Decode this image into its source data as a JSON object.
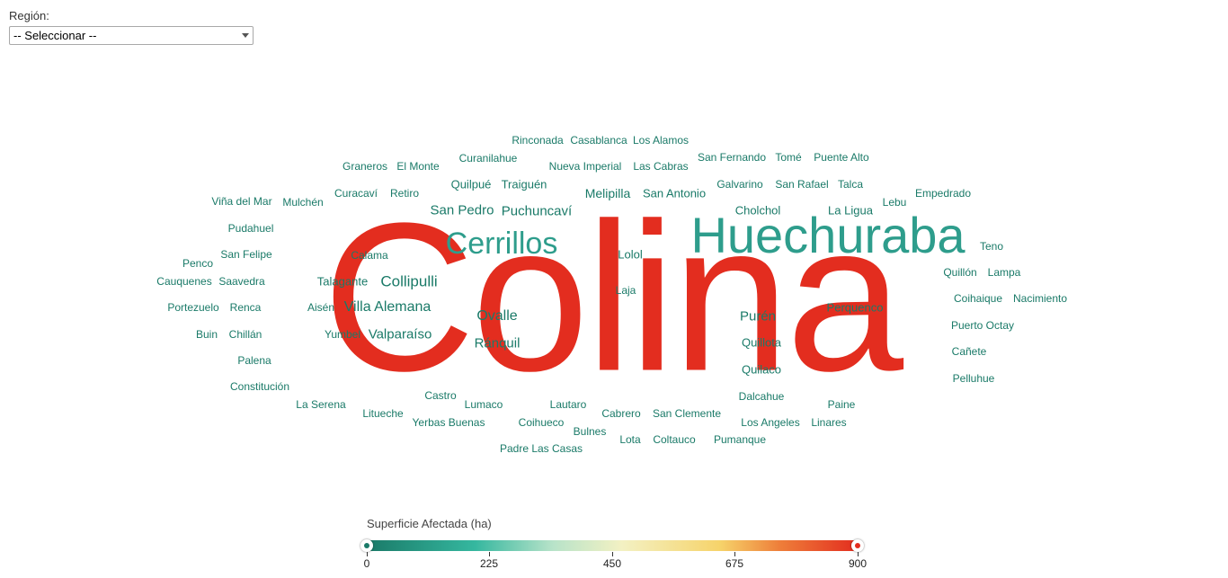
{
  "filter": {
    "label": "Región:",
    "selected": "-- Seleccionar --"
  },
  "wordcloud": {
    "words": [
      {
        "text": "Colina",
        "color": "#e32d1f"
      },
      {
        "text": "Huechuraba",
        "color": "#2e9d8c"
      },
      {
        "text": "Cerrillos",
        "color": "#2e9d8c"
      },
      {
        "text": "Rinconada",
        "color": "#1a7a68"
      },
      {
        "text": "Casablanca",
        "color": "#1a7a68"
      },
      {
        "text": "Los Alamos",
        "color": "#1a7a68"
      },
      {
        "text": "Curanilahue",
        "color": "#1a7a68"
      },
      {
        "text": "San Fernando",
        "color": "#1a7a68"
      },
      {
        "text": "Tomé",
        "color": "#1a7a68"
      },
      {
        "text": "Puente Alto",
        "color": "#1a7a68"
      },
      {
        "text": "Graneros",
        "color": "#1a7a68"
      },
      {
        "text": "El Monte",
        "color": "#1a7a68"
      },
      {
        "text": "Nueva Imperial",
        "color": "#1a7a68"
      },
      {
        "text": "Las Cabras",
        "color": "#1a7a68"
      },
      {
        "text": "Quilpué",
        "color": "#1a7a68"
      },
      {
        "text": "Traiguén",
        "color": "#1a7a68"
      },
      {
        "text": "Galvarino",
        "color": "#1a7a68"
      },
      {
        "text": "San Rafael",
        "color": "#1a7a68"
      },
      {
        "text": "Talca",
        "color": "#1a7a68"
      },
      {
        "text": "Curacaví",
        "color": "#1a7a68"
      },
      {
        "text": "Retiro",
        "color": "#1a7a68"
      },
      {
        "text": "Melipilla",
        "color": "#1a7a68"
      },
      {
        "text": "San Antonio",
        "color": "#1a7a68"
      },
      {
        "text": "Empedrado",
        "color": "#1a7a68"
      },
      {
        "text": "Viña del Mar",
        "color": "#1a7a68"
      },
      {
        "text": "Mulchén",
        "color": "#1a7a68"
      },
      {
        "text": "Lebu",
        "color": "#1a7a68"
      },
      {
        "text": "San Pedro",
        "color": "#1a7a68"
      },
      {
        "text": "Puchuncaví",
        "color": "#1a7a68"
      },
      {
        "text": "Cholchol",
        "color": "#1a7a68"
      },
      {
        "text": "La Ligua",
        "color": "#1a7a68"
      },
      {
        "text": "Pudahuel",
        "color": "#1a7a68"
      },
      {
        "text": "Teno",
        "color": "#1a7a68"
      },
      {
        "text": "San Felipe",
        "color": "#1a7a68"
      },
      {
        "text": "Calama",
        "color": "#1a7a68"
      },
      {
        "text": "Lolol",
        "color": "#1a7a68"
      },
      {
        "text": "Penco",
        "color": "#1a7a68"
      },
      {
        "text": "Quillón",
        "color": "#1a7a68"
      },
      {
        "text": "Lampa",
        "color": "#1a7a68"
      },
      {
        "text": "Cauquenes",
        "color": "#1a7a68"
      },
      {
        "text": "Saavedra",
        "color": "#1a7a68"
      },
      {
        "text": "Talagante",
        "color": "#1a7a68"
      },
      {
        "text": "Collipulli",
        "color": "#1a7a68"
      },
      {
        "text": "Laja",
        "color": "#1a7a68"
      },
      {
        "text": "Coihaique",
        "color": "#1a7a68"
      },
      {
        "text": "Nacimiento",
        "color": "#1a7a68"
      },
      {
        "text": "Portezuelo",
        "color": "#1a7a68"
      },
      {
        "text": "Renca",
        "color": "#1a7a68"
      },
      {
        "text": "Aisén",
        "color": "#1a7a68"
      },
      {
        "text": "Villa Alemana",
        "color": "#1a7a68"
      },
      {
        "text": "Perquenco",
        "color": "#1a7a68"
      },
      {
        "text": "Ovalle",
        "color": "#1a7a68"
      },
      {
        "text": "Purén",
        "color": "#1a7a68"
      },
      {
        "text": "Puerto Octay",
        "color": "#1a7a68"
      },
      {
        "text": "Buin",
        "color": "#1a7a68"
      },
      {
        "text": "Chillán",
        "color": "#1a7a68"
      },
      {
        "text": "Yumbel",
        "color": "#1a7a68"
      },
      {
        "text": "Valparaíso",
        "color": "#1a7a68"
      },
      {
        "text": "Ránquil",
        "color": "#1a7a68"
      },
      {
        "text": "Quillota",
        "color": "#1a7a68"
      },
      {
        "text": "Cañete",
        "color": "#1a7a68"
      },
      {
        "text": "Palena",
        "color": "#1a7a68"
      },
      {
        "text": "Quilaco",
        "color": "#1a7a68"
      },
      {
        "text": "Pelluhue",
        "color": "#1a7a68"
      },
      {
        "text": "Constitución",
        "color": "#1a7a68"
      },
      {
        "text": "Castro",
        "color": "#1a7a68"
      },
      {
        "text": "Dalcahue",
        "color": "#1a7a68"
      },
      {
        "text": "La Serena",
        "color": "#1a7a68"
      },
      {
        "text": "Lumaco",
        "color": "#1a7a68"
      },
      {
        "text": "Lautaro",
        "color": "#1a7a68"
      },
      {
        "text": "Paine",
        "color": "#1a7a68"
      },
      {
        "text": "Litueche",
        "color": "#1a7a68"
      },
      {
        "text": "Cabrero",
        "color": "#1a7a68"
      },
      {
        "text": "San Clemente",
        "color": "#1a7a68"
      },
      {
        "text": "Yerbas Buenas",
        "color": "#1a7a68"
      },
      {
        "text": "Coihueco",
        "color": "#1a7a68"
      },
      {
        "text": "Los Angeles",
        "color": "#1a7a68"
      },
      {
        "text": "Linares",
        "color": "#1a7a68"
      },
      {
        "text": "Bulnes",
        "color": "#1a7a68"
      },
      {
        "text": "Lota",
        "color": "#1a7a68"
      },
      {
        "text": "Coltauco",
        "color": "#1a7a68"
      },
      {
        "text": "Pumanque",
        "color": "#1a7a68"
      },
      {
        "text": "Padre Las Casas",
        "color": "#1a7a68"
      }
    ]
  },
  "legend": {
    "title": "Superficie Afectada (ha)",
    "ticks": [
      "0",
      "225",
      "450",
      "675",
      "900"
    ],
    "min_color": "#1a7a68",
    "max_color": "#e32d1f"
  }
}
